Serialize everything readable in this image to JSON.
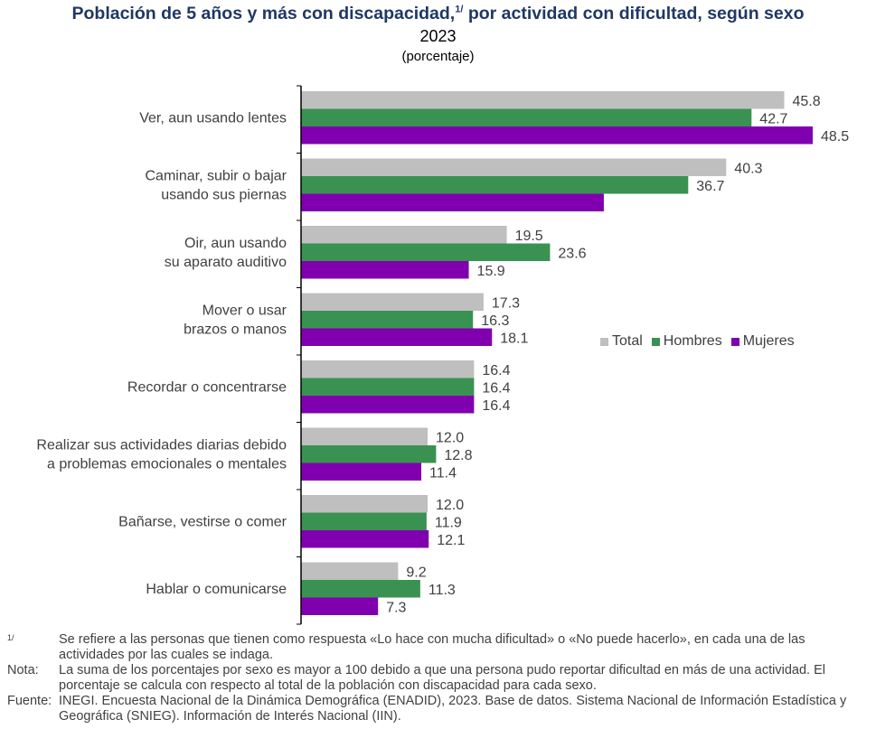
{
  "title": {
    "main": "Población de 5 años y más con discapacidad,",
    "sup": "1/",
    "rest": " por actividad con dificultad, según sexo",
    "year": "2023",
    "unit": "(porcentaje)"
  },
  "legend": {
    "items": [
      {
        "label": "Total",
        "color": "#bfbfbf"
      },
      {
        "label": "Hombres",
        "color": "#3a9252"
      },
      {
        "label": "Mujeres",
        "color": "#8000b0"
      }
    ]
  },
  "chart_data": {
    "type": "bar",
    "orientation": "horizontal",
    "categories": [
      [
        "Ver, aun usando lentes"
      ],
      [
        "Caminar, subir o bajar",
        "usando sus piernas"
      ],
      [
        "Oir, aun usando",
        "su aparato auditivo"
      ],
      [
        "Mover o usar",
        "brazos o manos"
      ],
      [
        "Recordar o concentrarse"
      ],
      [
        "Realizar sus actividades diarias debido",
        "a problemas emocionales o mentales"
      ],
      [
        "Bañarse, vestirse o comer"
      ],
      [
        "Hablar o comunicarse"
      ]
    ],
    "series": [
      {
        "name": "Total",
        "color": "#bfbfbf",
        "values": [
          45.8,
          40.3,
          19.5,
          17.3,
          16.4,
          12.0,
          12.0,
          9.2
        ],
        "labels": [
          "45.8",
          "40.3",
          "19.5",
          "17.3",
          "16.4",
          "12.0",
          "12.0",
          "9.2"
        ]
      },
      {
        "name": "Hombres",
        "color": "#3a9252",
        "values": [
          42.7,
          36.7,
          23.6,
          16.3,
          16.4,
          12.8,
          11.9,
          11.3
        ],
        "labels": [
          "42.7",
          "36.7",
          "23.6",
          "16.3",
          "16.4",
          "12.8",
          "11.9",
          "11.3"
        ]
      },
      {
        "name": "Mujeres",
        "color": "#8000b0",
        "values": [
          48.5,
          28.7,
          15.9,
          18.1,
          16.4,
          11.4,
          12.1,
          7.3
        ],
        "labels": [
          "48.5",
          "",
          "15.9",
          "18.1",
          "16.4",
          "11.4",
          "12.1",
          "7.3"
        ]
      }
    ],
    "xlim": [
      0,
      52
    ],
    "grid": false,
    "legend_position": "right-middle"
  },
  "notes": [
    {
      "key": "1/",
      "text": "Se refiere a las personas que tienen como respuesta «Lo hace con mucha dificultad» o «No puede hacerlo», en cada una de las actividades por las cuales se indaga."
    },
    {
      "key": "Nota:",
      "text": "La suma de los porcentajes por sexo es mayor a 100 debido a que una persona pudo reportar dificultad en más de una actividad. El porcentaje se calcula con respecto al total de la población con discapacidad para cada sexo."
    },
    {
      "key": "Fuente:",
      "text": "INEGI. Encuesta Nacional de la Dinámica Demográfica (ENADID), 2023. Base de datos. Sistema Nacional de Información Estadística y Geográfica (SNIEG). Información de Interés Nacional (IIN)."
    }
  ]
}
